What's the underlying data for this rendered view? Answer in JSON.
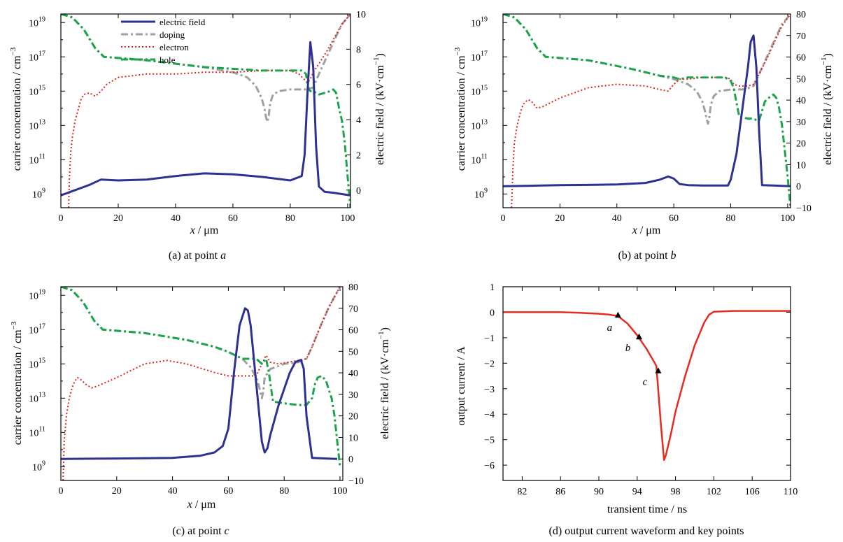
{
  "chart_data": [
    {
      "id": "a",
      "type": "line",
      "caption_prefix": "(a) at point ",
      "caption_point": "a",
      "xlabel_var": "x",
      "xlabel_unit": " / μm",
      "ylabel_left": "carrier concentration / cm",
      "ylabel_left_sup": "−3",
      "ylabel_right": "electric field / (kV·cm",
      "ylabel_right_sup": "−1",
      "ylabel_right_end": ")",
      "xlim": [
        0,
        101
      ],
      "xticks": [
        "0",
        "20",
        "40",
        "60",
        "80",
        "100"
      ],
      "ylim_log": [
        8.2,
        19.5
      ],
      "yticks_log": [
        9,
        11,
        13,
        15,
        17,
        19
      ],
      "ylim_right": [
        -1,
        10
      ],
      "yticks_right": [
        "0",
        "2",
        "4",
        "6",
        "8",
        "10"
      ],
      "legend": [
        "electric field",
        "doping",
        "electron",
        "hole"
      ],
      "series": [
        {
          "name": "doping",
          "axis": "left",
          "x": [
            0,
            4,
            8,
            12,
            15,
            30,
            50,
            60,
            65,
            68,
            70,
            71,
            71.5,
            72,
            72.5,
            73,
            74,
            76,
            80,
            85,
            88,
            90,
            93,
            96,
            98,
            101
          ],
          "y": [
            19.5,
            19.3,
            18.6,
            17.5,
            17.0,
            16.8,
            16.4,
            16.1,
            15.8,
            15.3,
            14.6,
            14.0,
            13.5,
            13.2,
            13.6,
            14.3,
            14.8,
            15.0,
            15.1,
            15.1,
            15.2,
            16.0,
            17.1,
            18.2,
            18.9,
            19.5
          ]
        },
        {
          "name": "electron",
          "axis": "left",
          "x": [
            2.7,
            3,
            3.5,
            4,
            5,
            6,
            7,
            8,
            10,
            12,
            14,
            16,
            20,
            30,
            40,
            50,
            60,
            70,
            80,
            83,
            86,
            87,
            88,
            90,
            93,
            96,
            98,
            101
          ],
          "y": [
            8.2,
            10.0,
            11.5,
            12.3,
            13.3,
            13.9,
            14.5,
            14.8,
            14.9,
            14.7,
            15.0,
            15.4,
            15.8,
            16.0,
            16.0,
            16.1,
            16.1,
            16.2,
            16.2,
            16.0,
            15.5,
            15.7,
            16.1,
            16.6,
            17.4,
            18.3,
            18.9,
            19.5
          ]
        },
        {
          "name": "hole",
          "axis": "left",
          "x": [
            0,
            4,
            8,
            12,
            15,
            30,
            50,
            60,
            70,
            80,
            84,
            85.5,
            86,
            86.5,
            87,
            88,
            89,
            90,
            92,
            94,
            95,
            96,
            97,
            98,
            99,
            100,
            101
          ],
          "y": [
            19.5,
            19.3,
            18.6,
            17.5,
            17.0,
            16.8,
            16.4,
            16.3,
            16.2,
            16.2,
            16.2,
            16.0,
            15.3,
            15.1,
            15.0,
            15.0,
            14.9,
            14.8,
            14.9,
            15.0,
            15.1,
            14.9,
            14.0,
            13.3,
            12.0,
            10.0,
            8.2
          ]
        },
        {
          "name": "electric field",
          "axis": "right",
          "x": [
            0,
            5,
            10,
            14,
            20,
            30,
            40,
            50,
            60,
            70,
            80,
            84,
            85,
            86,
            87,
            88,
            89,
            90,
            92,
            95,
            101
          ],
          "y": [
            -0.3,
            0.0,
            0.3,
            0.6,
            0.55,
            0.6,
            0.8,
            0.95,
            0.9,
            0.75,
            0.55,
            0.8,
            2.0,
            5.5,
            8.4,
            7.0,
            2.5,
            0.2,
            -0.1,
            -0.15,
            -0.3
          ]
        }
      ]
    },
    {
      "id": "b",
      "type": "line",
      "caption_prefix": "(b) at point ",
      "caption_point": "b",
      "xlabel_var": "x",
      "xlabel_unit": " / μm",
      "ylabel_left": "carrier concentration / cm",
      "ylabel_left_sup": "−3",
      "ylabel_right": "electric field / (kV·cm",
      "ylabel_right_sup": "−1",
      "ylabel_right_end": ")",
      "xlim": [
        0,
        101
      ],
      "xticks": [
        "0",
        "20",
        "40",
        "60",
        "80",
        "100"
      ],
      "ylim_log": [
        8.2,
        19.5
      ],
      "yticks_log": [
        9,
        11,
        13,
        15,
        17,
        19
      ],
      "ylim_right": [
        -10,
        80
      ],
      "yticks_right": [
        "−10",
        "0",
        "10",
        "20",
        "30",
        "40",
        "50",
        "60",
        "70",
        "80"
      ],
      "series": [
        {
          "name": "doping",
          "axis": "left",
          "x": [
            0,
            4,
            8,
            12,
            15,
            30,
            45,
            55,
            60,
            65,
            68,
            70,
            71,
            71.5,
            72,
            72.5,
            73,
            74,
            76,
            80,
            85,
            88,
            90,
            93,
            96,
            98,
            101
          ],
          "y": [
            19.5,
            19.3,
            18.6,
            17.5,
            17.0,
            16.8,
            16.3,
            15.9,
            15.7,
            15.4,
            15.0,
            14.4,
            13.8,
            13.4,
            13.1,
            13.5,
            14.2,
            14.7,
            15.0,
            15.1,
            15.1,
            15.3,
            16.0,
            17.1,
            18.2,
            18.9,
            19.5
          ]
        },
        {
          "name": "electron",
          "axis": "left",
          "x": [
            3,
            3.5,
            4,
            5,
            6,
            7,
            8,
            9,
            10,
            12,
            14,
            20,
            30,
            40,
            50,
            55,
            58,
            60,
            62,
            65,
            70,
            78,
            80,
            81,
            83,
            86,
            88,
            90,
            93,
            96,
            98,
            101
          ],
          "y": [
            8.2,
            10.5,
            12.0,
            13.0,
            13.7,
            14.2,
            14.4,
            14.5,
            14.4,
            14.0,
            14.1,
            14.6,
            15.2,
            15.4,
            15.3,
            15.1,
            15.0,
            15.4,
            15.7,
            15.7,
            15.8,
            15.8,
            15.7,
            15.4,
            15.3,
            15.3,
            15.4,
            16.0,
            17.0,
            18.1,
            18.8,
            19.5
          ]
        },
        {
          "name": "hole",
          "axis": "left",
          "x": [
            0,
            4,
            8,
            12,
            15,
            30,
            45,
            55,
            60,
            62,
            65,
            70,
            78,
            80,
            81,
            83,
            86,
            88,
            89,
            90,
            92,
            94,
            95,
            96,
            97,
            98,
            99,
            100,
            101
          ],
          "y": [
            19.5,
            19.3,
            18.6,
            17.5,
            17.0,
            16.8,
            16.3,
            15.9,
            15.8,
            15.7,
            15.8,
            15.8,
            15.8,
            15.6,
            15.2,
            13.5,
            13.4,
            13.4,
            13.3,
            13.3,
            14.4,
            14.7,
            14.8,
            14.6,
            14.0,
            13.0,
            11.5,
            10.0,
            8.2
          ]
        },
        {
          "name": "electric field",
          "axis": "right",
          "x": [
            0,
            10,
            20,
            30,
            40,
            50,
            55,
            58,
            60,
            62,
            65,
            70,
            79,
            80,
            82,
            84,
            86,
            87,
            88,
            89,
            90,
            91,
            95,
            101
          ],
          "y": [
            0,
            0.2,
            0.5,
            0.6,
            0.8,
            1.5,
            3.0,
            4.5,
            3.5,
            1.0,
            0.5,
            0.3,
            0.3,
            3.0,
            15,
            35,
            55,
            67,
            70,
            55,
            25,
            0.5,
            0.3,
            0
          ]
        }
      ]
    },
    {
      "id": "c",
      "type": "line",
      "caption_prefix": "(c) at point ",
      "caption_point": "c",
      "xlabel_var": "x",
      "xlabel_unit": " / μm",
      "ylabel_left": "carrier concentration / cm",
      "ylabel_left_sup": "−3",
      "ylabel_right": "electric field / (kV·cm",
      "ylabel_right_sup": "−1",
      "ylabel_right_end": ")",
      "xlim": [
        0,
        101
      ],
      "xticks": [
        "0",
        "20",
        "40",
        "60",
        "80",
        "100"
      ],
      "ylim_log": [
        8.2,
        19.5
      ],
      "yticks_log": [
        9,
        11,
        13,
        15,
        17,
        19
      ],
      "ylim_right": [
        -10,
        80
      ],
      "yticks_right": [
        "−10",
        "0",
        "10",
        "20",
        "30",
        "40",
        "50",
        "60",
        "70",
        "80"
      ],
      "series": [
        {
          "name": "doping",
          "axis": "left",
          "x": [
            0,
            4,
            8,
            12,
            15,
            30,
            45,
            55,
            60,
            65,
            68,
            70,
            71,
            71.5,
            72,
            72.5,
            73,
            75,
            80,
            85,
            88,
            90,
            93,
            96,
            98,
            100
          ],
          "y": [
            19.5,
            19.3,
            18.6,
            17.5,
            17.0,
            16.8,
            16.4,
            16.0,
            15.7,
            15.3,
            14.8,
            14.2,
            13.7,
            13.3,
            13.0,
            13.4,
            14.2,
            14.7,
            15.0,
            15.1,
            15.3,
            16.0,
            17.2,
            18.3,
            18.9,
            19.5
          ]
        },
        {
          "name": "electron",
          "axis": "left",
          "x": [
            0.8,
            1.2,
            2,
            3,
            4,
            5,
            6,
            7,
            9,
            11,
            13,
            20,
            30,
            38,
            45,
            55,
            60,
            65,
            70,
            72,
            73.5,
            75,
            78,
            85,
            88,
            90,
            93,
            96,
            100
          ],
          "y": [
            8.2,
            10.5,
            12.0,
            13.0,
            13.6,
            14.0,
            14.2,
            14.1,
            13.8,
            13.6,
            13.7,
            14.2,
            15.0,
            15.2,
            15.0,
            14.5,
            14.3,
            14.3,
            14.3,
            15.0,
            15.5,
            15.1,
            15.0,
            15.2,
            15.3,
            16.0,
            17.2,
            18.3,
            19.5
          ]
        },
        {
          "name": "hole",
          "axis": "left",
          "x": [
            0,
            4,
            8,
            12,
            15,
            30,
            45,
            55,
            60,
            65,
            70,
            72,
            73.5,
            74.5,
            76,
            80,
            85,
            88,
            90,
            91,
            92,
            93.5,
            95,
            96,
            97,
            98,
            99,
            100
          ],
          "y": [
            19.5,
            19.3,
            18.6,
            17.5,
            17.0,
            16.8,
            16.4,
            16.0,
            15.7,
            15.3,
            15.3,
            15.0,
            15.3,
            14.5,
            12.8,
            12.7,
            12.6,
            12.6,
            13.0,
            13.8,
            14.2,
            14.3,
            14.0,
            13.5,
            13.0,
            12.0,
            10.5,
            9.0
          ]
        },
        {
          "name": "electric field",
          "axis": "right",
          "x": [
            0,
            20,
            40,
            50,
            55,
            58,
            60,
            62,
            64,
            66,
            67,
            68,
            70,
            72,
            73,
            74,
            75,
            78,
            82,
            84,
            86,
            87,
            88,
            90,
            95,
            99
          ],
          "y": [
            0,
            0.2,
            0.5,
            1.5,
            3.0,
            6.0,
            14.0,
            40.0,
            62.0,
            70.0,
            69.0,
            62.0,
            35.0,
            8.0,
            3.0,
            5.0,
            11.0,
            25.0,
            40.0,
            45.0,
            46.0,
            42.0,
            20.0,
            0.5,
            0.2,
            0
          ]
        }
      ]
    },
    {
      "id": "d",
      "type": "line",
      "caption": "(d) output current waveform and key points",
      "xlabel": "transient time / ns",
      "ylabel": "output current / A",
      "xlim": [
        80,
        110
      ],
      "xticks": [
        "82",
        "86",
        "90",
        "94",
        "98",
        "102",
        "106",
        "110"
      ],
      "ylim": [
        -6.6,
        1
      ],
      "yticks": [
        "1",
        "0",
        "−1",
        "−2",
        "−3",
        "−4",
        "−5",
        "−6"
      ],
      "series": [
        {
          "name": "output current",
          "x": [
            80,
            86,
            88,
            90,
            91,
            92,
            93,
            94,
            95,
            96,
            96.5,
            96.8,
            97,
            97.5,
            98,
            99,
            100,
            101,
            101.5,
            102,
            104,
            110
          ],
          "y": [
            0,
            0,
            -0.02,
            -0.06,
            -0.09,
            -0.15,
            -0.45,
            -0.9,
            -1.45,
            -2.1,
            -4.5,
            -5.8,
            -5.6,
            -4.8,
            -3.9,
            -2.5,
            -1.3,
            -0.4,
            -0.1,
            0.02,
            0.05,
            0.05
          ]
        }
      ],
      "key_points": [
        {
          "label": "a",
          "x": 92.0,
          "y": -0.12
        },
        {
          "label": "b",
          "x": 94.2,
          "y": -0.97
        },
        {
          "label": "c",
          "x": 96.2,
          "y": -2.3
        }
      ]
    }
  ],
  "colors": {
    "electric_field": "#2e3192",
    "doping": "#a0a0a0",
    "electron": "#e0231c",
    "hole": "#1aa54a",
    "current": "#e62b20",
    "marker": "#000000"
  }
}
